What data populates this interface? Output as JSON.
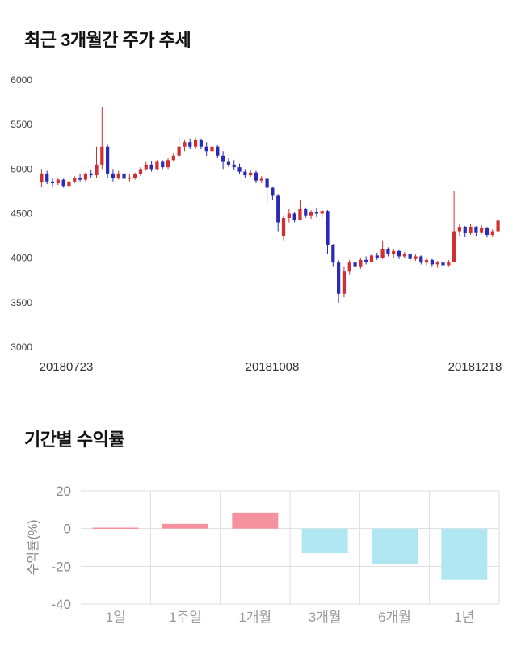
{
  "chart_data": [
    {
      "type": "candlestick",
      "title": "최근 3개월간 주가 추세",
      "ylim": [
        3000,
        6000
      ],
      "yticks": [
        6000,
        5500,
        5000,
        4500,
        4000,
        3500,
        3000
      ],
      "xtick_labels": [
        "20180723",
        "20181008",
        "20181218"
      ],
      "up_color": "#d03030",
      "down_color": "#2a2ab8",
      "candles": [
        [
          4850,
          5000,
          4800,
          4950
        ],
        [
          4950,
          4980,
          4830,
          4860
        ],
        [
          4860,
          4900,
          4800,
          4840
        ],
        [
          4840,
          4900,
          4820,
          4880
        ],
        [
          4880,
          4890,
          4790,
          4810
        ],
        [
          4810,
          4870,
          4780,
          4860
        ],
        [
          4860,
          4920,
          4840,
          4900
        ],
        [
          4900,
          4950,
          4860,
          4880
        ],
        [
          4880,
          4960,
          4860,
          4950
        ],
        [
          4950,
          4990,
          4900,
          4930
        ],
        [
          4930,
          5250,
          4900,
          5050
        ],
        [
          5050,
          5700,
          5000,
          5250
        ],
        [
          5250,
          5280,
          4900,
          4950
        ],
        [
          4950,
          5000,
          4860,
          4900
        ],
        [
          4900,
          4980,
          4880,
          4950
        ],
        [
          4950,
          4970,
          4870,
          4890
        ],
        [
          4890,
          4940,
          4860,
          4900
        ],
        [
          4900,
          4960,
          4880,
          4940
        ],
        [
          4940,
          5020,
          4920,
          5000
        ],
        [
          5000,
          5080,
          4980,
          5050
        ],
        [
          5050,
          5090,
          4970,
          5000
        ],
        [
          5000,
          5100,
          4990,
          5080
        ],
        [
          5080,
          5100,
          5000,
          5020
        ],
        [
          5020,
          5120,
          5000,
          5100
        ],
        [
          5100,
          5180,
          5080,
          5150
        ],
        [
          5150,
          5350,
          5120,
          5250
        ],
        [
          5250,
          5330,
          5200,
          5300
        ],
        [
          5300,
          5340,
          5220,
          5250
        ],
        [
          5250,
          5350,
          5230,
          5320
        ],
        [
          5320,
          5340,
          5220,
          5250
        ],
        [
          5250,
          5300,
          5150,
          5200
        ],
        [
          5200,
          5280,
          5180,
          5250
        ],
        [
          5250,
          5270,
          5120,
          5150
        ],
        [
          5150,
          5200,
          5000,
          5080
        ],
        [
          5080,
          5120,
          5020,
          5050
        ],
        [
          5050,
          5100,
          4990,
          5020
        ],
        [
          5020,
          5060,
          4940,
          4970
        ],
        [
          4970,
          5000,
          4900,
          4930
        ],
        [
          4930,
          4990,
          4910,
          4960
        ],
        [
          4960,
          4980,
          4840,
          4870
        ],
        [
          4870,
          4920,
          4840,
          4890
        ],
        [
          4890,
          4900,
          4600,
          4790
        ],
        [
          4790,
          4800,
          4650,
          4700
        ],
        [
          4700,
          4720,
          4300,
          4400
        ],
        [
          4250,
          4480,
          4200,
          4450
        ],
        [
          4450,
          4550,
          4400,
          4500
        ],
        [
          4500,
          4520,
          4400,
          4430
        ],
        [
          4430,
          4650,
          4420,
          4550
        ],
        [
          4550,
          4570,
          4450,
          4480
        ],
        [
          4480,
          4540,
          4440,
          4520
        ],
        [
          4520,
          4560,
          4460,
          4500
        ],
        [
          4500,
          4550,
          4450,
          4530
        ],
        [
          4530,
          4540,
          4050,
          4150
        ],
        [
          4150,
          4160,
          3900,
          3950
        ],
        [
          3950,
          3980,
          3500,
          3600
        ],
        [
          3600,
          3900,
          3560,
          3850
        ],
        [
          3850,
          3980,
          3820,
          3950
        ],
        [
          3950,
          3970,
          3860,
          3900
        ],
        [
          3900,
          4000,
          3880,
          3980
        ],
        [
          3980,
          4020,
          3930,
          3960
        ],
        [
          3960,
          4050,
          3950,
          4030
        ],
        [
          4030,
          4060,
          3980,
          4000
        ],
        [
          4000,
          4200,
          3990,
          4100
        ],
        [
          4100,
          4120,
          4020,
          4050
        ],
        [
          4050,
          4100,
          4000,
          4080
        ],
        [
          4080,
          4090,
          3990,
          4020
        ],
        [
          4020,
          4070,
          4000,
          4050
        ],
        [
          4050,
          4060,
          3960,
          3990
        ],
        [
          3990,
          4040,
          3970,
          4020
        ],
        [
          4020,
          4030,
          3930,
          3950
        ],
        [
          3950,
          4000,
          3920,
          3980
        ],
        [
          3980,
          3990,
          3900,
          3930
        ],
        [
          3930,
          3970,
          3890,
          3950
        ],
        [
          3950,
          3960,
          3880,
          3920
        ],
        [
          3920,
          3980,
          3900,
          3960
        ],
        [
          3960,
          4750,
          3950,
          4300
        ],
        [
          4300,
          4380,
          4250,
          4350
        ],
        [
          4350,
          4360,
          4240,
          4280
        ],
        [
          4280,
          4380,
          4260,
          4350
        ],
        [
          4350,
          4360,
          4250,
          4290
        ],
        [
          4290,
          4370,
          4270,
          4340
        ],
        [
          4340,
          4350,
          4230,
          4260
        ],
        [
          4260,
          4320,
          4240,
          4300
        ],
        [
          4300,
          4440,
          4280,
          4420
        ]
      ]
    },
    {
      "type": "bar",
      "title": "기간별 수익률",
      "ylabel": "수익률(%)",
      "ylim": [
        -40,
        20
      ],
      "yticks": [
        20,
        0,
        -20,
        -40
      ],
      "categories": [
        "1일",
        "1주일",
        "1개월",
        "3개월",
        "6개월",
        "1년"
      ],
      "values": [
        0.5,
        2.5,
        8.5,
        -13,
        -19,
        -27
      ],
      "positive_color": "#f5929d",
      "negative_color": "#b0e6f2",
      "grid_color": "#dddddd",
      "tick_color": "#999999",
      "legend": "none",
      "grid": "on"
    }
  ]
}
